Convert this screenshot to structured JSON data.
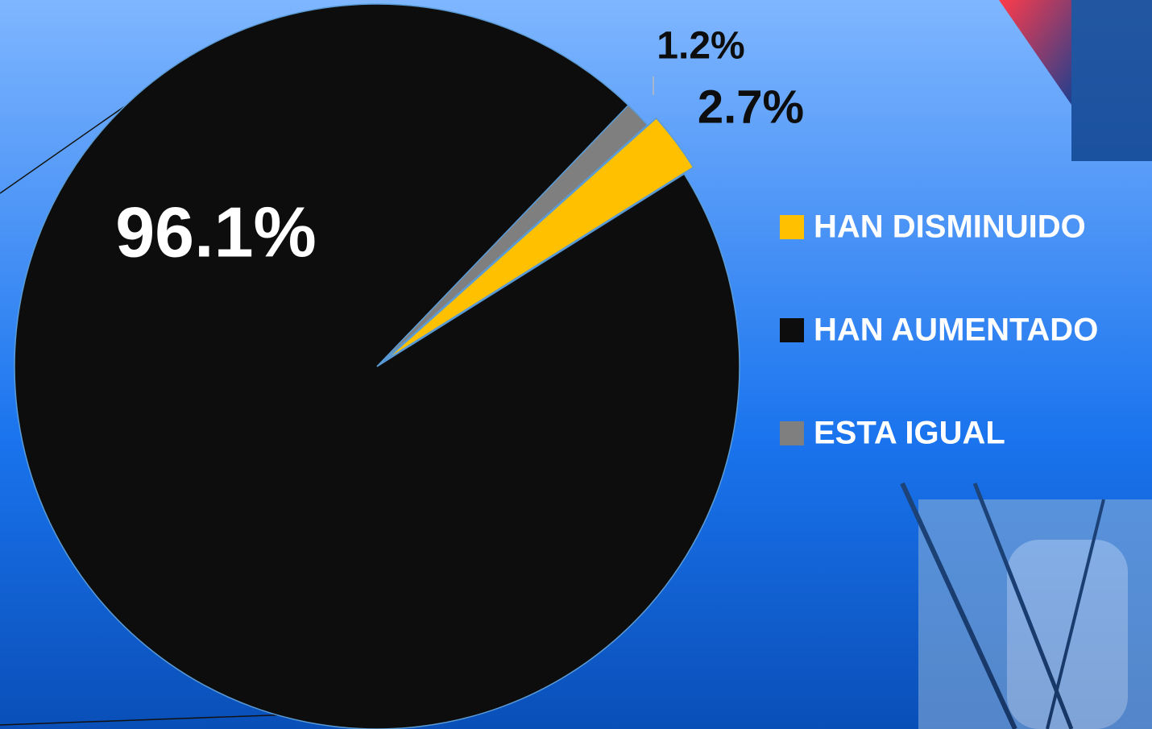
{
  "chart_data": {
    "type": "pie",
    "categories": [
      "HAN DISMINUIDO",
      "HAN AUMENTADO",
      "ESTA IGUAL"
    ],
    "values": [
      2.7,
      96.1,
      1.2
    ],
    "value_labels": [
      "2.7%",
      "96.1%",
      "1.2%"
    ],
    "colors": [
      "#ffc000",
      "#0d0d0d",
      "#7f7f7f"
    ],
    "legend": "right"
  }
}
